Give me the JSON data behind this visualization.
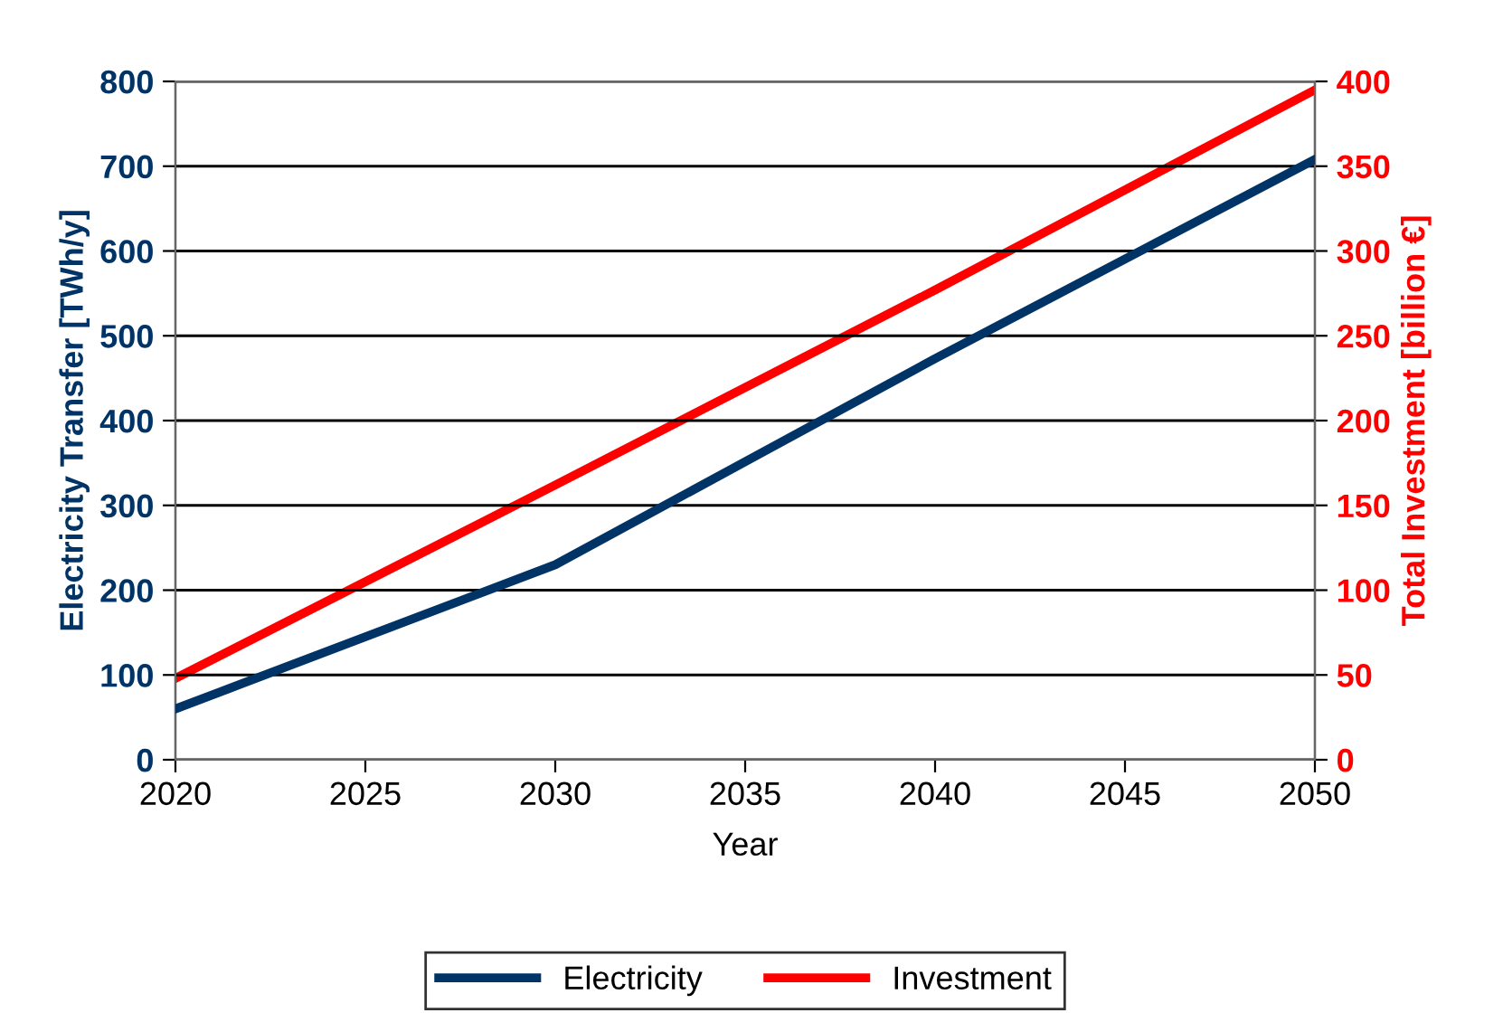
{
  "chart_data": {
    "type": "line",
    "xlabel": "Year",
    "ylabel": "Electricity Transfer [TWh/y]",
    "y2label": "Total Investment [billion €]",
    "x": [
      2020,
      2030,
      2040,
      2050
    ],
    "series": [
      {
        "name": "Electricity",
        "color": "#003366",
        "values": [
          60,
          230,
          473,
          708
        ]
      },
      {
        "name": "Investment",
        "color": "#ff0000",
        "axis": "y2",
        "values": [
          48,
          162,
          277,
          395
        ]
      }
    ],
    "xlim": [
      2020,
      2050
    ],
    "xticks": [
      2020,
      2025,
      2030,
      2035,
      2040,
      2045,
      2050
    ],
    "ylim": [
      0,
      800
    ],
    "yticks": [
      0,
      100,
      200,
      300,
      400,
      500,
      600,
      700,
      800
    ],
    "y2lim": [
      0,
      400
    ],
    "y2ticks": [
      0,
      50,
      100,
      150,
      200,
      250,
      300,
      350,
      400
    ],
    "grid": "y",
    "legend": "bottom",
    "marker": "none",
    "line_style": "solid"
  }
}
